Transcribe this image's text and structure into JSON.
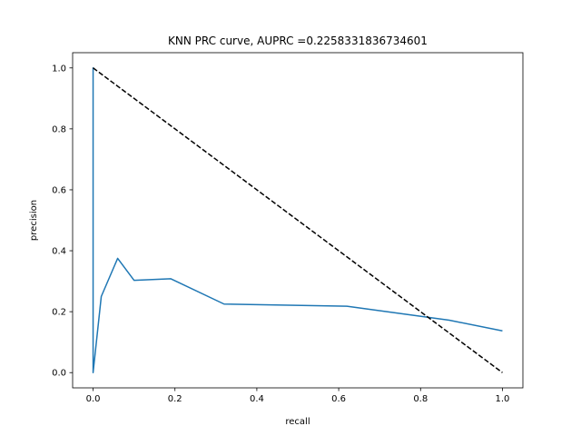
{
  "chart_data": {
    "type": "line",
    "title": "KNN PRC curve, AUPRC =0.2258331836734601",
    "xlabel": "recall",
    "ylabel": "precision",
    "xlim": [
      -0.05,
      1.05
    ],
    "ylim": [
      -0.05,
      1.05
    ],
    "xticks": [
      0.0,
      0.2,
      0.4,
      0.6,
      0.8,
      1.0
    ],
    "xtick_labels": [
      "0.0",
      "0.2",
      "0.4",
      "0.6",
      "0.8",
      "1.0"
    ],
    "yticks": [
      0.0,
      0.2,
      0.4,
      0.6,
      0.8,
      1.0
    ],
    "ytick_labels": [
      "0.0",
      "0.2",
      "0.4",
      "0.6",
      "0.8",
      "1.0"
    ],
    "grid": false,
    "series": [
      {
        "color": "#1f77b4",
        "style": "solid",
        "x": [
          0.0,
          0.0,
          0.0,
          0.02,
          0.06,
          0.1,
          0.19,
          0.32,
          0.62,
          0.87,
          1.0
        ],
        "y": [
          0.0,
          1.0,
          0.0,
          0.25,
          0.375,
          0.303,
          0.308,
          0.225,
          0.218,
          0.172,
          0.137
        ]
      },
      {
        "color": "#000000",
        "style": "dashed",
        "x": [
          0.0,
          1.0
        ],
        "y": [
          1.0,
          0.0
        ]
      }
    ]
  }
}
